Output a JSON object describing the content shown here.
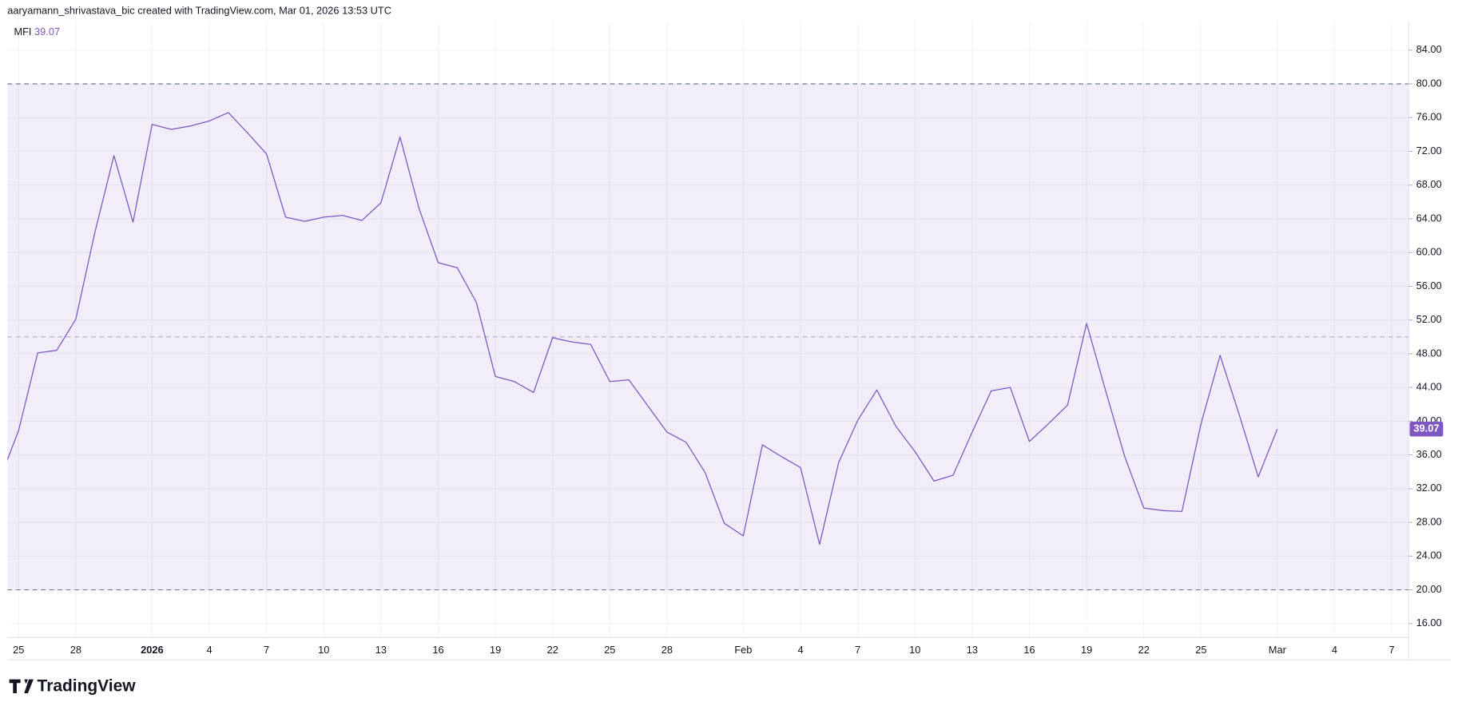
{
  "header": {
    "credit": "aaryamann_shrivastava_bic created with TradingView.com, Mar 01, 2026 13:53 UTC"
  },
  "footer": {
    "brand": "TradingView"
  },
  "chart_data": {
    "type": "line",
    "categories": [
      null,
      "25",
      null,
      null,
      "28",
      null,
      null,
      null,
      "2026",
      null,
      null,
      "4",
      null,
      null,
      "7",
      null,
      null,
      "10",
      null,
      null,
      "13",
      null,
      null,
      "16",
      null,
      null,
      "19",
      null,
      null,
      "22",
      null,
      null,
      "25",
      null,
      null,
      "28",
      null,
      null,
      null,
      "Feb",
      null,
      null,
      "4",
      null,
      null,
      "7",
      null,
      null,
      "10",
      null,
      null,
      "13",
      null,
      null,
      "16",
      null,
      null,
      "19",
      null,
      null,
      "22",
      null,
      null,
      "25",
      null,
      null,
      null,
      "Mar",
      null,
      null,
      "4",
      null,
      null,
      "7"
    ],
    "series": [
      {
        "name": "MFI",
        "color": "#7e57c2",
        "values": [
          33.0,
          38.9,
          48.1,
          48.4,
          52.1,
          62.4,
          71.5,
          63.6,
          75.2,
          74.6,
          75.0,
          75.6,
          76.6,
          74.2,
          71.7,
          64.2,
          63.7,
          64.2,
          64.4,
          63.8,
          65.9,
          73.7,
          65.2,
          58.8,
          58.2,
          54.1,
          45.3,
          44.7,
          43.4,
          49.9,
          49.4,
          49.1,
          44.7,
          44.9,
          41.8,
          38.7,
          37.5,
          33.9,
          27.9,
          26.4,
          37.2,
          35.8,
          34.5,
          25.4,
          35.1,
          40.1,
          43.7,
          39.4,
          36.4,
          32.9,
          33.6,
          38.7,
          43.6,
          44.0,
          37.6,
          39.7,
          41.9,
          51.6,
          43.6,
          35.8,
          29.7,
          29.4,
          29.3,
          39.7,
          47.8,
          40.8,
          33.4,
          39.07,
          null,
          null,
          null,
          null,
          null,
          null
        ]
      }
    ],
    "ylim": [
      14.35,
      87.3
    ],
    "yticks": [
      {
        "value": 16,
        "label": "16.00"
      },
      {
        "value": 20,
        "label": "20.00"
      },
      {
        "value": 24,
        "label": "24.00"
      },
      {
        "value": 28,
        "label": "28.00"
      },
      {
        "value": 32,
        "label": "32.00"
      },
      {
        "value": 36,
        "label": "36.00"
      },
      {
        "value": 40,
        "label": "40.00"
      },
      {
        "value": 44,
        "label": "44.00"
      },
      {
        "value": 48,
        "label": "48.00"
      },
      {
        "value": 52,
        "label": "52.00"
      },
      {
        "value": 56,
        "label": "56.00"
      },
      {
        "value": 60,
        "label": "60.00"
      },
      {
        "value": 64,
        "label": "64.00"
      },
      {
        "value": 68,
        "label": "68.00"
      },
      {
        "value": 72,
        "label": "72.00"
      },
      {
        "value": 76,
        "label": "76.00"
      },
      {
        "value": 80,
        "label": "80.00"
      },
      {
        "value": 84,
        "label": "84.00"
      }
    ],
    "bands": {
      "upper": 80,
      "middle": 50,
      "lower": 20,
      "color": "#7e57c2"
    },
    "grid": true
  }
}
